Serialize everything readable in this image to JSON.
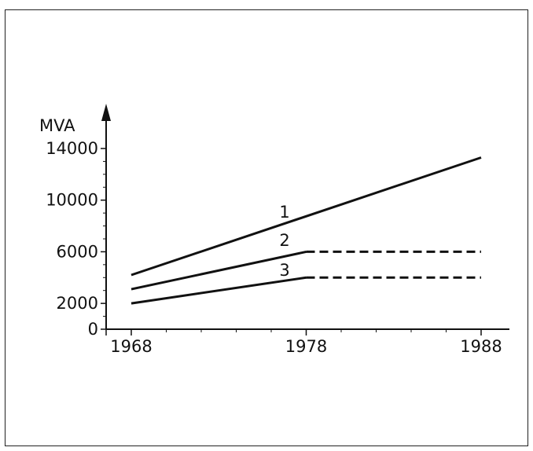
{
  "chart_data": {
    "type": "line",
    "ylabel": "MVA",
    "xlabel": "",
    "x_ticks": [
      "1968",
      "1978",
      "1988"
    ],
    "y_ticks": [
      "0",
      "2000",
      "6000",
      "10000",
      "14000"
    ],
    "xlim": [
      1968,
      1988
    ],
    "ylim": [
      0,
      14000
    ],
    "grid": false,
    "legend": "inline-labels",
    "series": [
      {
        "name": "1",
        "solid": [
          [
            1968,
            4200
          ],
          [
            1988,
            13300
          ]
        ],
        "dashed": []
      },
      {
        "name": "2",
        "solid": [
          [
            1968,
            3100
          ],
          [
            1978,
            6000
          ]
        ],
        "dashed": [
          [
            1978,
            6000
          ],
          [
            1988,
            6000
          ]
        ]
      },
      {
        "name": "3",
        "solid": [
          [
            1968,
            2000
          ],
          [
            1978,
            4000
          ]
        ],
        "dashed": [
          [
            1978,
            4000
          ],
          [
            1988,
            4000
          ]
        ]
      }
    ]
  }
}
